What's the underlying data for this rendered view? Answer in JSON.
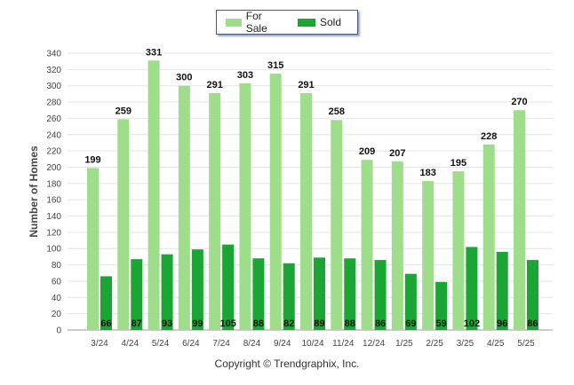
{
  "chart_data": {
    "type": "bar",
    "categories": [
      "3/24",
      "4/24",
      "5/24",
      "6/24",
      "7/24",
      "8/24",
      "9/24",
      "10/24",
      "11/24",
      "12/24",
      "1/25",
      "2/25",
      "3/25",
      "4/25",
      "5/25"
    ],
    "series": [
      {
        "name": "For Sale",
        "color": "#9ede8a",
        "values": [
          199,
          259,
          331,
          300,
          291,
          303,
          315,
          291,
          258,
          209,
          207,
          183,
          195,
          228,
          270
        ]
      },
      {
        "name": "Sold",
        "color": "#1aa535",
        "values": [
          66,
          87,
          93,
          99,
          105,
          88,
          82,
          89,
          88,
          86,
          69,
          59,
          102,
          96,
          86
        ]
      }
    ],
    "title": "",
    "xlabel": "",
    "ylabel": "Number of Homes",
    "ylim": [
      0,
      340
    ],
    "yticks": [
      0,
      20,
      40,
      60,
      80,
      100,
      120,
      140,
      160,
      180,
      200,
      220,
      240,
      260,
      280,
      300,
      320,
      340
    ],
    "grid": true,
    "legend_position": "top-center"
  },
  "footer": {
    "copyright": "Copyright © Trendgraphix, Inc."
  }
}
